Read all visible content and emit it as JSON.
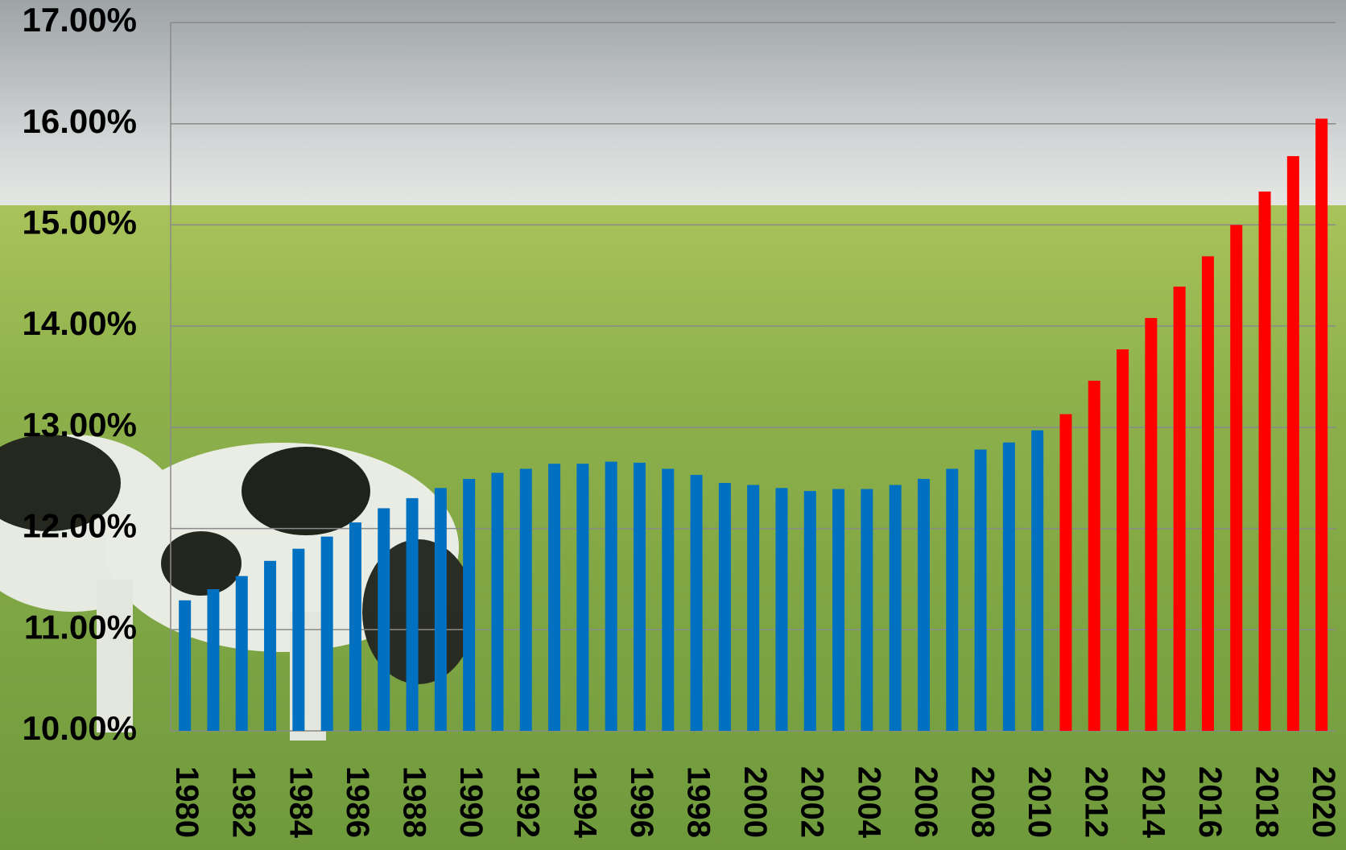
{
  "chart_data": {
    "type": "bar",
    "categories": [
      "1980",
      null,
      "1982",
      null,
      "1984",
      null,
      "1986",
      null,
      "1988",
      null,
      "1990",
      null,
      "1992",
      null,
      "1994",
      null,
      "1996",
      null,
      "1998",
      null,
      "2000",
      null,
      "2002",
      null,
      "2004",
      null,
      "2006",
      null,
      "2008",
      null,
      "2010",
      null,
      "2012",
      null,
      "2014",
      null,
      "2016",
      null,
      "2018",
      null,
      "2020"
    ],
    "values": [
      11.29,
      11.4,
      11.53,
      11.68,
      11.8,
      11.92,
      12.06,
      12.2,
      12.3,
      12.4,
      12.49,
      12.55,
      12.59,
      12.64,
      12.64,
      12.66,
      12.65,
      12.59,
      12.53,
      12.45,
      12.43,
      12.4,
      12.37,
      12.39,
      12.39,
      12.43,
      12.49,
      12.59,
      12.78,
      12.85,
      12.97,
      13.13,
      13.46,
      13.77,
      14.08,
      14.39,
      14.69,
      15.0,
      15.33,
      15.68,
      16.05
    ],
    "colors": [
      "#0070c0",
      "#0070c0",
      "#0070c0",
      "#0070c0",
      "#0070c0",
      "#0070c0",
      "#0070c0",
      "#0070c0",
      "#0070c0",
      "#0070c0",
      "#0070c0",
      "#0070c0",
      "#0070c0",
      "#0070c0",
      "#0070c0",
      "#0070c0",
      "#0070c0",
      "#0070c0",
      "#0070c0",
      "#0070c0",
      "#0070c0",
      "#0070c0",
      "#0070c0",
      "#0070c0",
      "#0070c0",
      "#0070c0",
      "#0070c0",
      "#0070c0",
      "#0070c0",
      "#0070c0",
      "#0070c0",
      "#ff0000",
      "#ff0000",
      "#ff0000",
      "#ff0000",
      "#ff0000",
      "#ff0000",
      "#ff0000",
      "#ff0000",
      "#ff0000",
      "#ff0000"
    ],
    "ylim": [
      10,
      17
    ],
    "yticks": [
      {
        "value": 10,
        "label": "10.00%"
      },
      {
        "value": 11,
        "label": "11.00%"
      },
      {
        "value": 12,
        "label": "12.00%"
      },
      {
        "value": 13,
        "label": "13.00%"
      },
      {
        "value": 14,
        "label": "14.00%"
      },
      {
        "value": 15,
        "label": "15.00%"
      },
      {
        "value": 16,
        "label": "16.00%"
      },
      {
        "value": 17,
        "label": "17.00%"
      }
    ],
    "grid": true
  }
}
